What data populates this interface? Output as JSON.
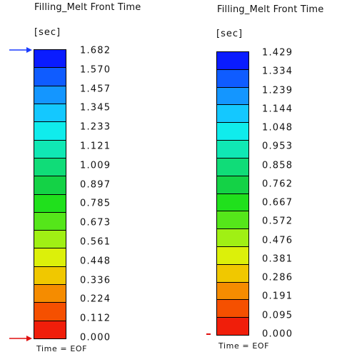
{
  "legends": [
    {
      "title": "Filling_Melt Front Time",
      "unit": "[sec]",
      "ticks": [
        "1.682",
        "1.570",
        "1.457",
        "1.345",
        "1.233",
        "1.121",
        "1.009",
        "0.897",
        "0.785",
        "0.673",
        "0.561",
        "0.448",
        "0.336",
        "0.224",
        "0.112",
        "0.000"
      ],
      "footer": "Time = EOF",
      "arrow_colors": [
        "#1a3cff",
        "#e01010"
      ]
    },
    {
      "title": "Filling_Melt Front Time",
      "unit": "[sec]",
      "ticks": [
        "1.429",
        "1.334",
        "1.239",
        "1.144",
        "1.048",
        "0.953",
        "0.858",
        "0.762",
        "0.667",
        "0.572",
        "0.476",
        "0.381",
        "0.286",
        "0.191",
        "0.095",
        "0.000"
      ],
      "footer": "Time = EOF",
      "arrow_colors": [
        "#e01010"
      ]
    }
  ],
  "scale_colors": [
    "#0a1cff",
    "#0f5cff",
    "#1496ff",
    "#14c8ff",
    "#10ecec",
    "#10e8b4",
    "#10dc78",
    "#14d246",
    "#20e01c",
    "#55e61a",
    "#a0f014",
    "#dcf00a",
    "#f0c800",
    "#f58c00",
    "#f55000",
    "#f01e0a"
  ]
}
